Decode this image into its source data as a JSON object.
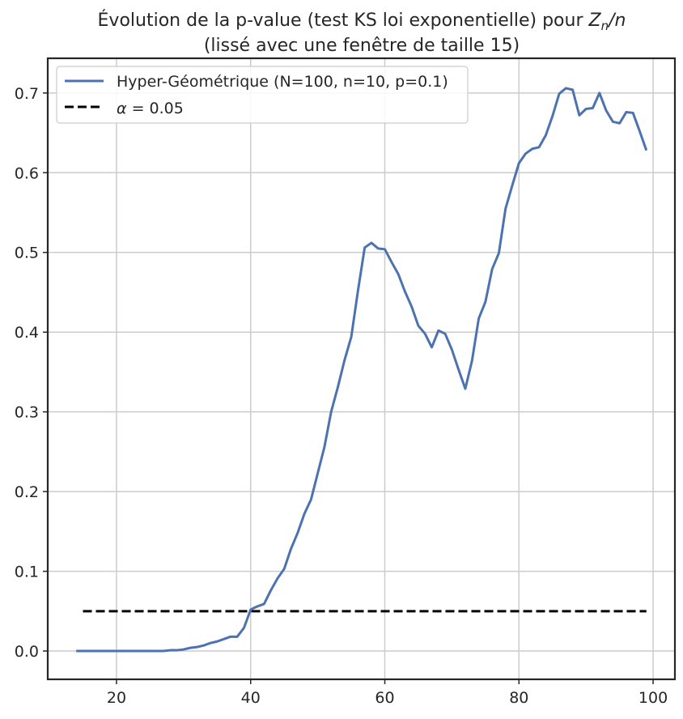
{
  "chart_data": {
    "type": "line",
    "title_line1_prefix": "Évolution de la p-value (test KS loi exponentielle) pour ",
    "title_math": "Z",
    "title_math_sub": "n",
    "title_math_suffix": "/n",
    "title_line2": "(lissé avec une fenêtre de taille 15)",
    "xlabel": "",
    "ylabel": "",
    "xlim": [
      9.75,
      103.25
    ],
    "ylim": [
      -0.0355,
      0.7435
    ],
    "x_ticks": [
      20,
      40,
      60,
      80,
      100
    ],
    "y_ticks": [
      0.0,
      0.1,
      0.2,
      0.3,
      0.4,
      0.5,
      0.6,
      0.7
    ],
    "x_tick_labels": [
      "20",
      "40",
      "60",
      "80",
      "100"
    ],
    "y_tick_labels": [
      "0.0",
      "0.1",
      "0.2",
      "0.3",
      "0.4",
      "0.5",
      "0.6",
      "0.7"
    ],
    "grid": true,
    "legend_position": "top-left",
    "series": [
      {
        "name": "Hyper-Géométrique (N=100, n=10, p=0.1)",
        "color": "#4c72b0",
        "style": "solid",
        "x": [
          14,
          15,
          16,
          17,
          18,
          19,
          20,
          21,
          22,
          23,
          24,
          25,
          26,
          27,
          28,
          29,
          30,
          31,
          32,
          33,
          34,
          35,
          36,
          37,
          38,
          39,
          40,
          41,
          42,
          43,
          44,
          45,
          46,
          47,
          48,
          49,
          50,
          51,
          52,
          53,
          54,
          55,
          56,
          57,
          58,
          59,
          60,
          61,
          62,
          63,
          64,
          65,
          66,
          67,
          68,
          69,
          70,
          71,
          72,
          73,
          74,
          75,
          76,
          77,
          78,
          79,
          80,
          81,
          82,
          83,
          84,
          85,
          86,
          87,
          88,
          89,
          90,
          91,
          92,
          93,
          94,
          95,
          96,
          97,
          98,
          99
        ],
        "y": [
          0.0,
          0.0,
          0.0,
          0.0,
          0.0,
          0.0,
          0.0,
          0.0,
          0.0,
          0.0,
          0.0,
          0.0,
          0.0,
          0.0,
          0.001,
          0.001,
          0.002,
          0.004,
          0.005,
          0.007,
          0.01,
          0.012,
          0.015,
          0.018,
          0.018,
          0.029,
          0.052,
          0.056,
          0.059,
          0.076,
          0.091,
          0.103,
          0.128,
          0.148,
          0.172,
          0.19,
          0.223,
          0.256,
          0.3,
          0.331,
          0.365,
          0.394,
          0.452,
          0.506,
          0.512,
          0.505,
          0.504,
          0.488,
          0.473,
          0.451,
          0.432,
          0.408,
          0.398,
          0.381,
          0.402,
          0.398,
          0.378,
          0.353,
          0.329,
          0.364,
          0.417,
          0.438,
          0.479,
          0.499,
          0.555,
          0.584,
          0.612,
          0.624,
          0.63,
          0.632,
          0.647,
          0.671,
          0.699,
          0.706,
          0.704,
          0.672,
          0.68,
          0.681,
          0.7,
          0.678,
          0.664,
          0.662,
          0.676,
          0.675,
          0.652,
          0.628
        ]
      },
      {
        "name": "α = 0.05",
        "legend_symbol": "α",
        "legend_rest": " = 0.05",
        "color": "#000000",
        "style": "dashed",
        "x": [
          15,
          99
        ],
        "y": [
          0.05,
          0.05
        ]
      }
    ]
  }
}
